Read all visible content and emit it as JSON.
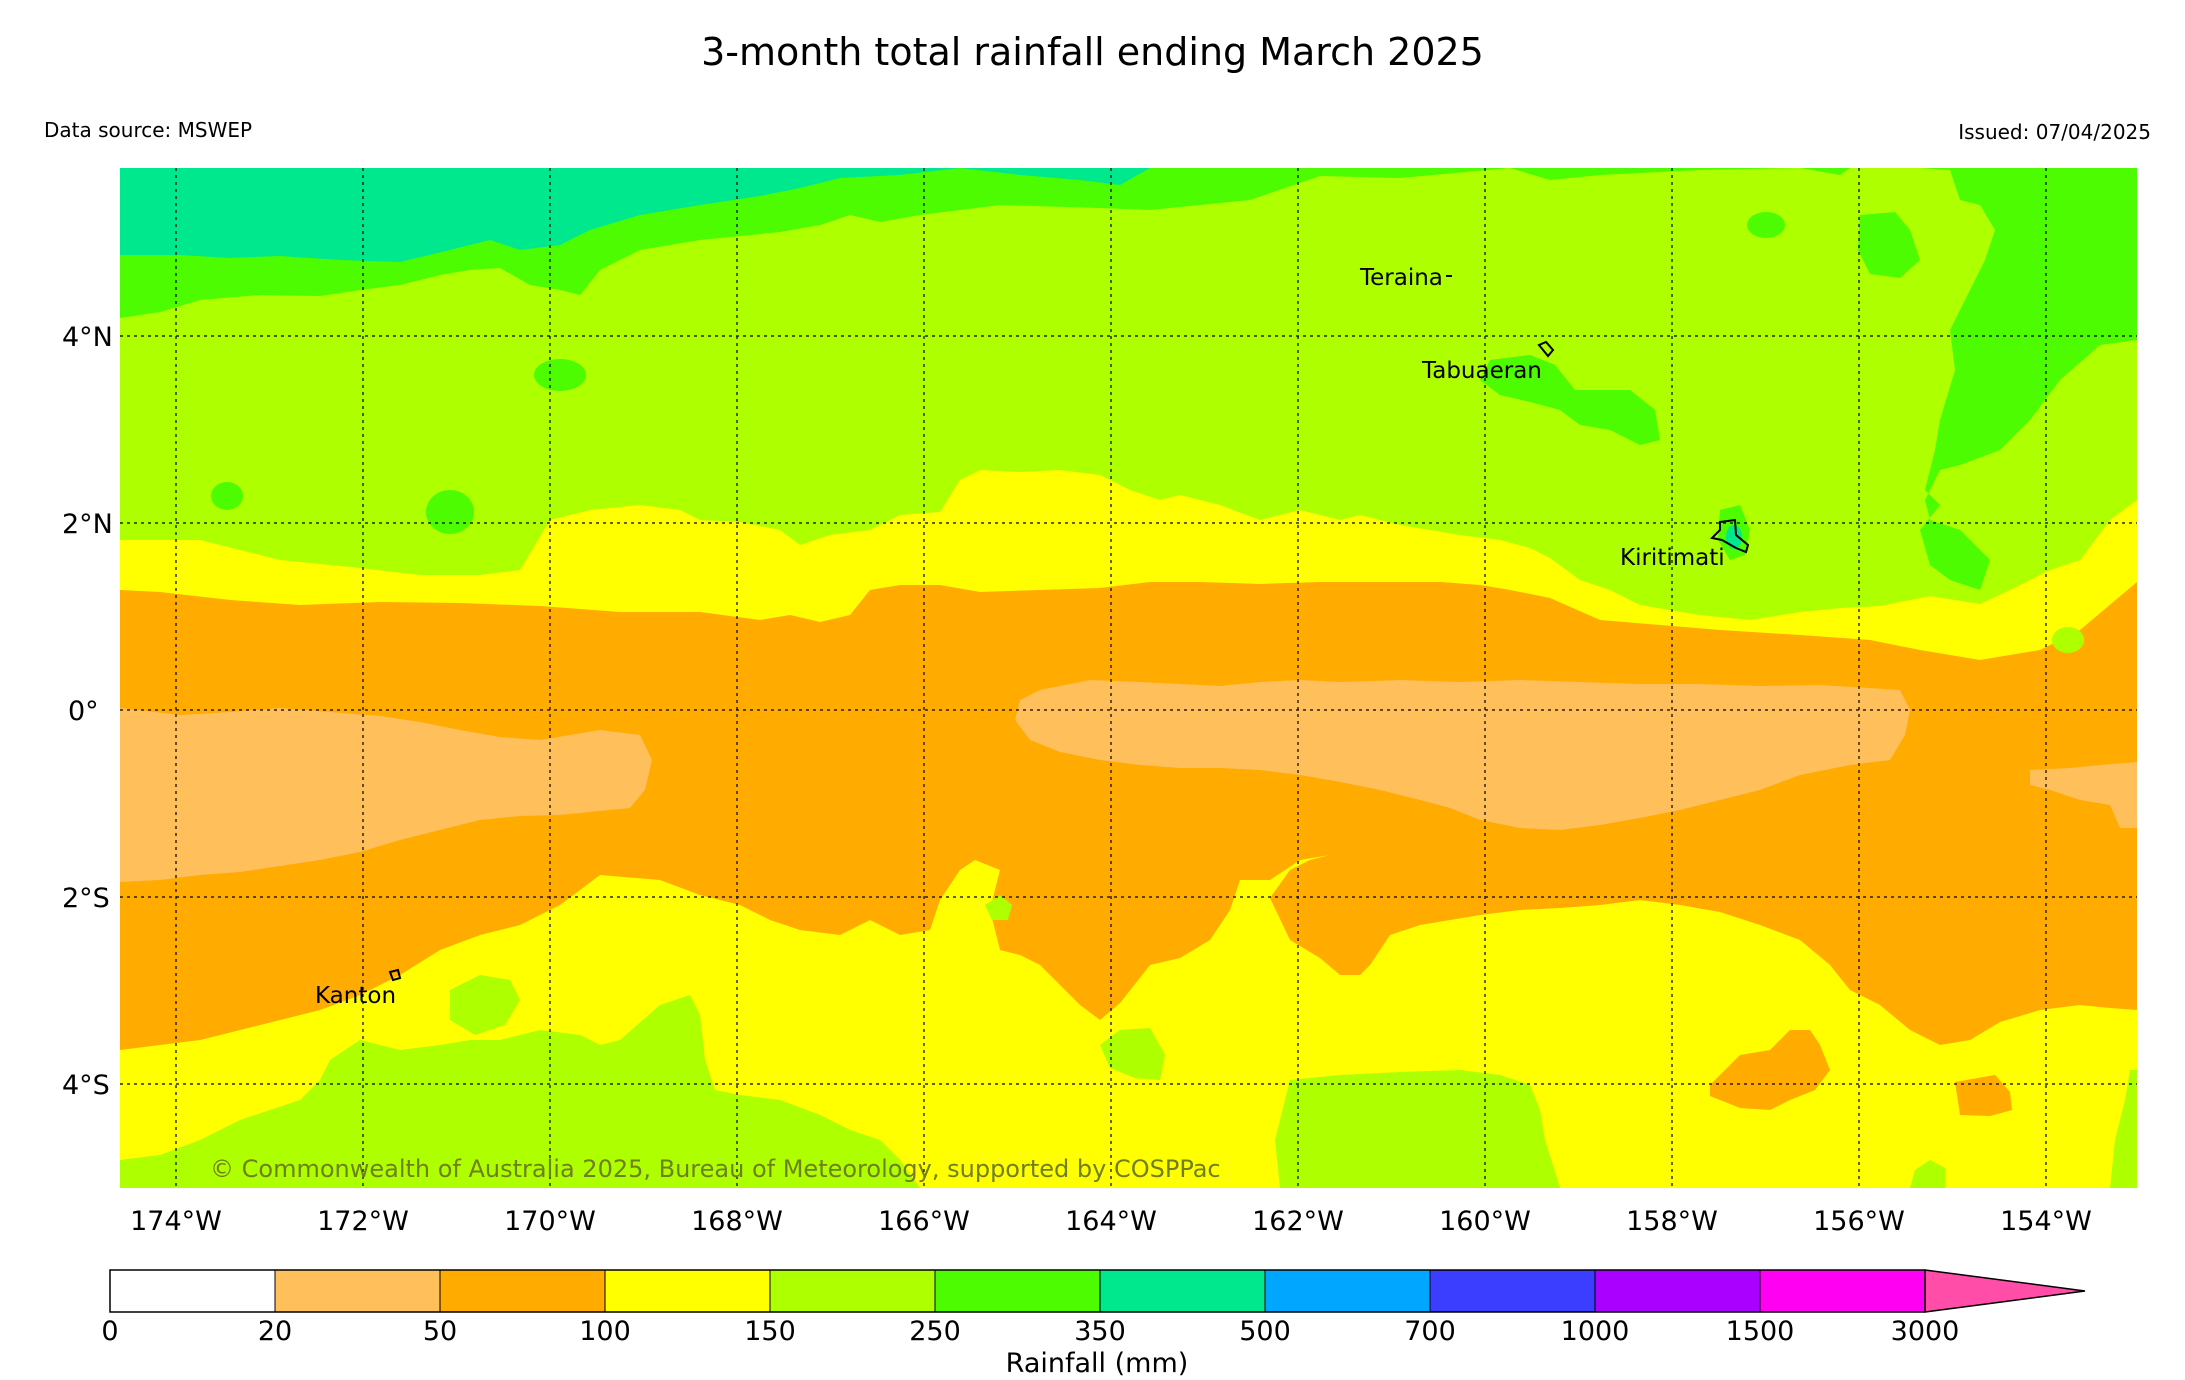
{
  "title": "3-month total rainfall ending March 2025",
  "data_source": "Data source: MSWEP",
  "issued": "Issued: 07/04/2025",
  "copyright": "© Commonwealth of Australia 2025, Bureau of Meteorology, supported by COSPPac",
  "map": {
    "lon_range": [
      -174.6,
      -153.0
    ],
    "lat_range": [
      -5.1,
      5.8
    ],
    "gridlines": true,
    "lon_labels": [
      "174°W",
      "172°W",
      "170°W",
      "168°W",
      "166°W",
      "164°W",
      "162°W",
      "160°W",
      "158°W",
      "156°W",
      "154°W"
    ],
    "lat_labels": [
      "4°N",
      "2°N",
      "0°",
      "2°S",
      "4°S"
    ],
    "places": [
      {
        "name": "Teraina",
        "lon": -160.4,
        "lat": 4.7
      },
      {
        "name": "Tabuaeran",
        "lon": -159.3,
        "lat": 3.9
      },
      {
        "name": "Kiritimati",
        "lon": -157.4,
        "lat": 1.9
      },
      {
        "name": "Kanton",
        "lon": -171.7,
        "lat": -2.8
      }
    ]
  },
  "colorbar": {
    "title": "Rainfall (mm)",
    "ticks": [
      "0",
      "20",
      "50",
      "100",
      "150",
      "250",
      "350",
      "500",
      "700",
      "1000",
      "1500",
      "3000"
    ],
    "colors": [
      "#ffffff",
      "#ffbf5a",
      "#ffab00",
      "#ffff00",
      "#aeff00",
      "#4dfc00",
      "#00e88e",
      "#00a6ff",
      "#3b3dff",
      "#a900ff",
      "#ff00f2",
      "#ff4da8"
    ]
  }
}
